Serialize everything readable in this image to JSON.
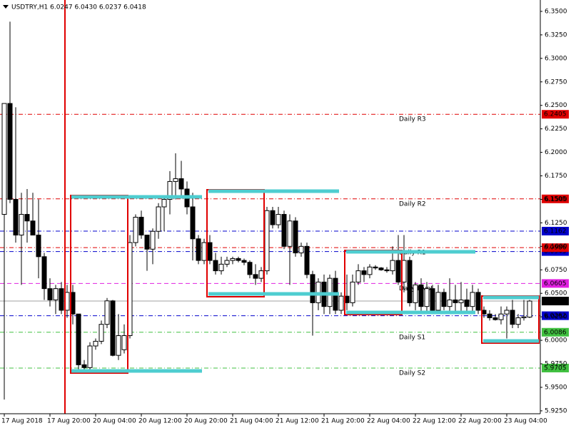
{
  "chart_data": {
    "type": "candlestick",
    "title": "USDTRY,H1  6.0247 6.0430 6.0237 6.0418",
    "ylim": [
      5.9219,
      6.3621
    ],
    "yticks": [
      {
        "value": 6.35,
        "label": "6.3500"
      },
      {
        "value": 6.325,
        "label": "6.3250"
      },
      {
        "value": 6.3,
        "label": "6.3000"
      },
      {
        "value": 6.275,
        "label": "6.2750"
      },
      {
        "value": 6.25,
        "label": "6.2500"
      },
      {
        "value": 6.225,
        "label": "6.2250"
      },
      {
        "value": 6.2,
        "label": "6.2000"
      },
      {
        "value": 6.175,
        "label": "6.1750"
      },
      {
        "value": 6.15,
        "label": "6.1500"
      },
      {
        "value": 6.125,
        "label": "6.1250"
      },
      {
        "value": 6.1,
        "label": "6.1000"
      },
      {
        "value": 6.075,
        "label": "6.0750"
      },
      {
        "value": 6.05,
        "label": "6.0500"
      },
      {
        "value": 6.025,
        "label": "6.0250"
      },
      {
        "value": 6.0,
        "label": "6.0000"
      },
      {
        "value": 5.975,
        "label": "5.9750"
      },
      {
        "value": 5.95,
        "label": "5.9500"
      },
      {
        "value": 5.925,
        "label": "5.9250"
      }
    ],
    "categories": [
      "17 Aug 2018",
      null,
      null,
      null,
      null,
      null,
      null,
      null,
      "17 Aug 20:00",
      null,
      null,
      null,
      null,
      null,
      null,
      null,
      "20 Aug 04:00",
      null,
      null,
      null,
      null,
      null,
      null,
      null,
      "20 Aug 12:00",
      null,
      null,
      null,
      null,
      null,
      null,
      null,
      "20 Aug 20:00",
      null,
      null,
      null,
      null,
      null,
      null,
      null,
      "21 Aug 04:00",
      null,
      null,
      null,
      null,
      null,
      null,
      null,
      "21 Aug 12:00",
      null,
      null,
      null,
      null,
      null,
      null,
      null,
      "21 Aug 20:00",
      null,
      null,
      null,
      null,
      null,
      null,
      null,
      "22 Aug 04:00",
      null,
      null,
      null,
      null,
      null,
      null,
      null,
      "22 Aug 12:00",
      null,
      null,
      null,
      null,
      null,
      null,
      null,
      "22 Aug 20:00",
      null,
      null,
      null,
      null,
      null,
      null,
      null,
      "23 Aug 04:00",
      null,
      null,
      null,
      null
    ],
    "open": [
      6.134,
      6.252,
      6.15,
      6.112,
      6.134,
      6.127,
      6.112,
      6.089,
      6.055,
      6.043,
      6.055,
      6.032,
      6.051,
      6.028,
      5.974,
      5.971,
      5.994,
      5.999,
      6.017,
      6.042,
      5.984,
      5.99,
      6.005,
      6.104,
      6.131,
      6.112,
      6.097,
      6.116,
      6.142,
      6.15,
      6.169,
      6.172,
      6.161,
      6.142,
      6.108,
      6.085,
      6.104,
      6.085,
      6.074,
      6.081,
      6.085,
      6.087,
      6.085,
      6.083,
      6.07,
      6.066,
      6.074,
      6.138,
      6.123,
      6.134,
      6.1,
      6.127,
      6.093,
      6.1,
      6.07,
      6.04,
      6.062,
      6.036,
      6.066,
      6.032,
      6.047,
      6.04,
      6.062,
      6.074,
      6.07,
      6.078,
      6.077,
      6.075,
      6.074,
      6.085,
      6.062,
      6.085,
      6.04,
      6.059,
      6.036,
      6.055,
      6.032,
      6.051,
      6.036,
      6.043,
      6.04,
      6.043,
      6.036,
      6.051,
      6.032,
      6.028,
      6.024,
      6.022,
      6.028,
      6.032,
      6.017,
      6.024,
      6.0247
    ],
    "high": [
      6.252,
      6.339,
      6.248,
      6.157,
      6.161,
      6.157,
      6.15,
      6.093,
      6.066,
      6.059,
      6.062,
      6.059,
      6.059,
      6.028,
      5.979,
      5.998,
      6.002,
      6.021,
      6.045,
      6.043,
      6.028,
      6.017,
      6.112,
      6.134,
      6.138,
      6.112,
      6.119,
      6.146,
      6.153,
      6.18,
      6.199,
      6.191,
      6.169,
      6.157,
      6.112,
      6.108,
      6.112,
      6.093,
      6.089,
      6.089,
      6.089,
      6.089,
      6.087,
      6.085,
      6.081,
      6.078,
      6.142,
      6.142,
      6.142,
      6.138,
      6.134,
      6.131,
      6.104,
      6.104,
      6.074,
      6.066,
      6.07,
      6.07,
      6.074,
      6.051,
      6.07,
      6.07,
      6.081,
      6.078,
      6.081,
      6.08,
      6.078,
      6.078,
      6.1,
      6.112,
      6.112,
      6.089,
      6.062,
      6.066,
      6.062,
      6.059,
      6.059,
      6.055,
      6.066,
      6.059,
      6.062,
      6.055,
      6.059,
      6.055,
      6.036,
      6.032,
      6.028,
      6.036,
      6.036,
      6.043,
      6.028,
      6.043,
      6.043
    ],
    "low": [
      5.937,
      6.146,
      6.104,
      6.059,
      6.104,
      6.112,
      6.066,
      6.043,
      6.036,
      6.028,
      6.028,
      6.024,
      6.017,
      5.969,
      5.967,
      5.967,
      5.99,
      5.996,
      6.013,
      5.983,
      5.979,
      5.986,
      6.002,
      6.1,
      6.108,
      6.074,
      6.081,
      6.108,
      6.116,
      6.134,
      6.15,
      6.153,
      6.134,
      6.085,
      6.081,
      6.081,
      6.081,
      6.07,
      6.07,
      6.078,
      6.081,
      6.083,
      6.08,
      6.066,
      6.059,
      6.062,
      6.07,
      6.119,
      6.119,
      6.097,
      6.059,
      6.089,
      6.089,
      6.066,
      6.005,
      6.032,
      6.028,
      6.028,
      6.028,
      6.028,
      6.032,
      6.036,
      6.059,
      6.062,
      6.066,
      6.075,
      6.074,
      6.072,
      6.07,
      6.059,
      6.051,
      6.036,
      6.032,
      6.028,
      6.028,
      6.028,
      6.028,
      6.032,
      6.028,
      6.028,
      6.028,
      6.028,
      6.028,
      6.028,
      6.024,
      6.021,
      6.021,
      6.017,
      6.002,
      6.013,
      6.013,
      6.021,
      6.0237
    ],
    "close": [
      6.252,
      6.15,
      6.112,
      6.134,
      6.127,
      6.112,
      6.089,
      6.055,
      6.043,
      6.055,
      6.032,
      6.051,
      6.028,
      5.974,
      5.971,
      5.994,
      5.999,
      6.017,
      6.042,
      5.984,
      6.005,
      6.005,
      6.104,
      6.131,
      6.112,
      6.097,
      6.116,
      6.142,
      6.15,
      6.169,
      6.172,
      6.161,
      6.142,
      6.108,
      6.085,
      6.104,
      6.085,
      6.074,
      6.081,
      6.085,
      6.087,
      6.085,
      6.083,
      6.07,
      6.066,
      6.074,
      6.138,
      6.123,
      6.134,
      6.1,
      6.127,
      6.093,
      6.1,
      6.07,
      6.04,
      6.062,
      6.036,
      6.066,
      6.032,
      6.047,
      6.04,
      6.062,
      6.074,
      6.07,
      6.078,
      6.077,
      6.075,
      6.074,
      6.085,
      6.062,
      6.085,
      6.04,
      6.059,
      6.036,
      6.055,
      6.032,
      6.051,
      6.036,
      6.043,
      6.04,
      6.043,
      6.036,
      6.051,
      6.032,
      6.028,
      6.024,
      6.022,
      6.028,
      6.032,
      6.017,
      6.024,
      6.025,
      6.0418
    ],
    "levels": [
      {
        "name": "Daily R3",
        "value": 6.2405,
        "color": "#e00000",
        "style": "dashdot"
      },
      {
        "name": "Daily R2",
        "value": 6.1505,
        "color": "#e00000",
        "style": "dashdot"
      },
      {
        "value": 6.1162,
        "color": "#0000cc",
        "style": "dashdot"
      },
      {
        "value": 6.0945,
        "color": "#0000cc",
        "style": "dashdot"
      },
      {
        "name": "Daily R1",
        "value": 6.0986,
        "color": "#e00000",
        "style": "dashdot"
      },
      {
        "name": "Daily Pivot",
        "value": 6.0605,
        "color": "#e020e0",
        "style": "dashed"
      },
      {
        "value": 6.0262,
        "color": "#0000cc",
        "style": "dashdot"
      },
      {
        "name": "Daily S1",
        "value": 6.0086,
        "color": "#40c040",
        "style": "dashdot"
      },
      {
        "name": "Daily S2",
        "value": 5.9705,
        "color": "#40c040",
        "style": "dashdot"
      }
    ],
    "current_price_color": "#a0a0a0"
  }
}
